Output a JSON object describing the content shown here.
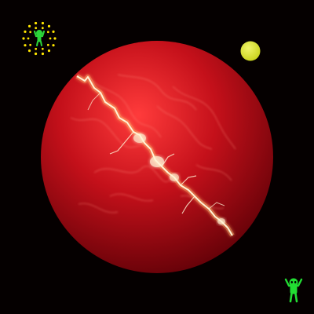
{
  "scene": {
    "background_color": "#050000",
    "planet": {
      "body_color": "#c4101a",
      "highlight_color": "#ff3b3b",
      "shadow_color": "#5a0006",
      "crack_color": "#fff4d6",
      "crack_glow_color": "#ffb36b"
    },
    "moon": {
      "color": "#c8d21a",
      "highlight_color": "#f1f56a"
    },
    "hud": {
      "sun_badge": {
        "icon": "radiant-figure-icon",
        "dot_color": "#ffe600",
        "figure_color": "#2bd63a"
      },
      "player_icon": {
        "icon": "green-alien-figure-icon",
        "color": "#22dd33"
      }
    }
  }
}
